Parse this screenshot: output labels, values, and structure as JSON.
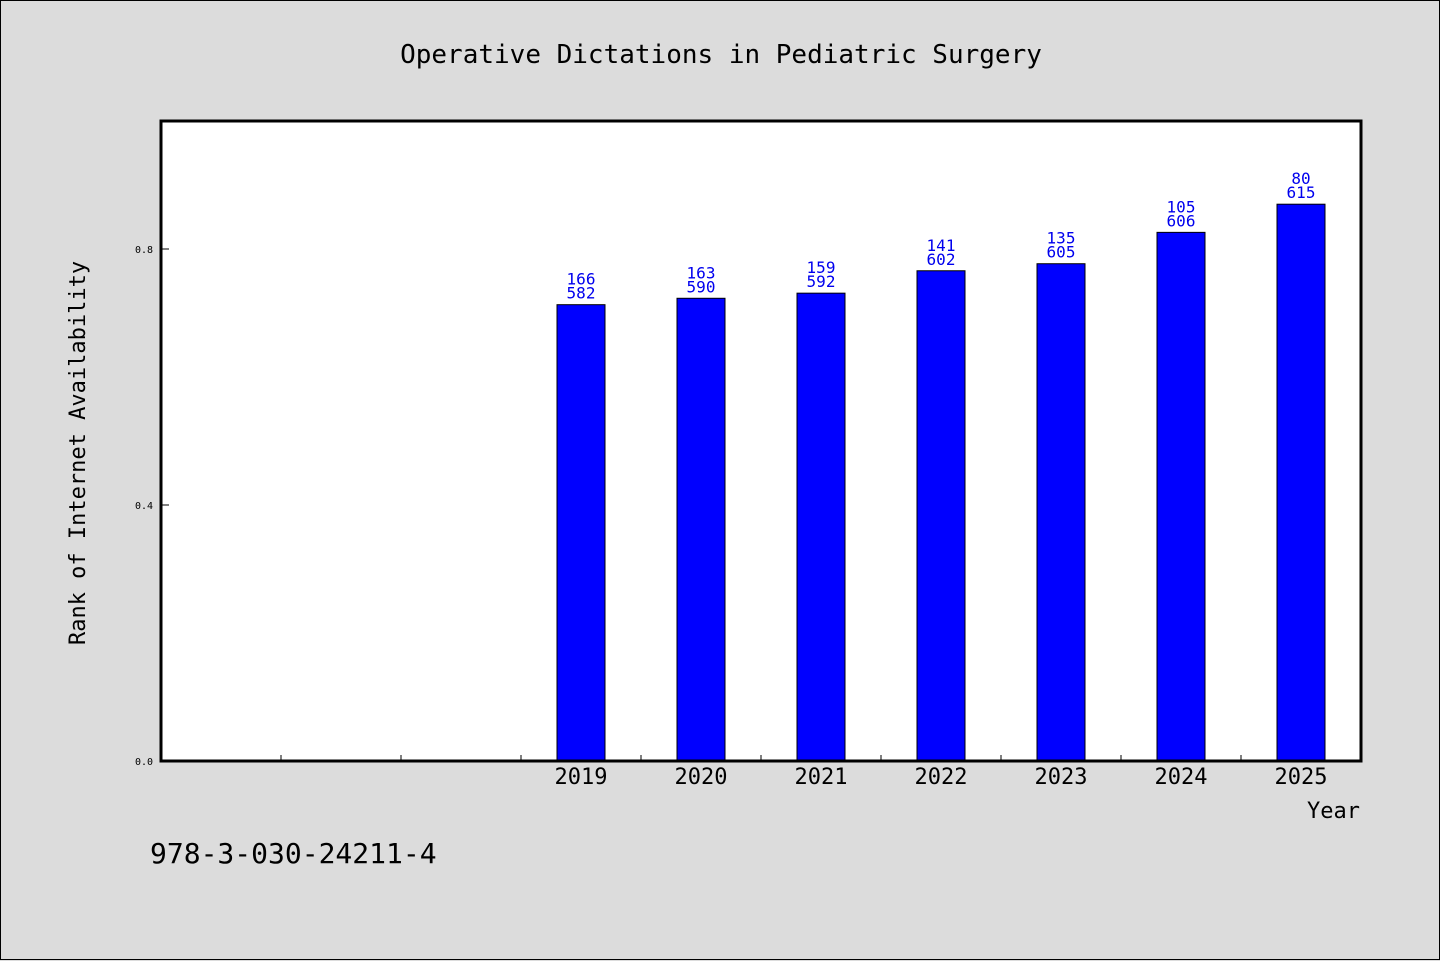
{
  "chart_data": {
    "type": "bar",
    "title": "Operative Dictations in Pediatric Surgery",
    "xlabel": "Year",
    "ylabel": "Rank of Internet Availability",
    "ylim": [
      0.0,
      1.0
    ],
    "yticks": [
      0.0,
      0.4,
      0.8
    ],
    "ytick_labels": [
      "0.0",
      "0.4",
      "0.8"
    ],
    "x_slots": 10,
    "categories": [
      "2019",
      "2020",
      "2021",
      "2022",
      "2023",
      "2024",
      "2025"
    ],
    "category_slot_start": 3,
    "values": [
      0.713,
      0.723,
      0.731,
      0.766,
      0.777,
      0.826,
      0.87
    ],
    "label_top": [
      "166",
      "163",
      "159",
      "141",
      "135",
      "105",
      "80"
    ],
    "label_bottom": [
      "582",
      "590",
      "592",
      "602",
      "605",
      "606",
      "615"
    ],
    "bar_color": "#0000ff",
    "label_color": "#0000ee",
    "grid": false,
    "legend": "none"
  },
  "footer": {
    "code": "978-3-030-24211-4"
  }
}
